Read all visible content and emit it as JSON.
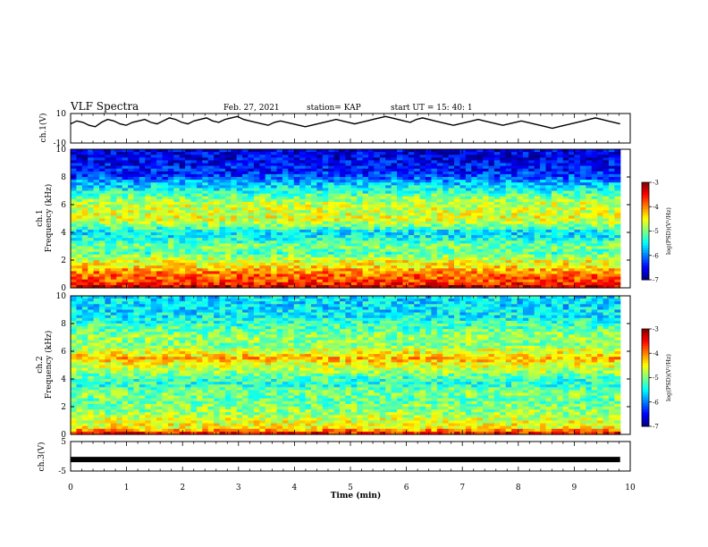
{
  "header": {
    "title": "VLF Spectra",
    "date": "Feb. 27, 2021",
    "station": "station= KAP",
    "start": "start  UT  =   15: 40: 1"
  },
  "colors": {
    "axis": "#000000",
    "background": "#ffffff",
    "colormap": [
      "#00007f",
      "#0000ff",
      "#007fff",
      "#00ffff",
      "#7fff7f",
      "#ffff00",
      "#ff7f00",
      "#ff0000",
      "#7f0000"
    ]
  },
  "chart_data": [
    {
      "type": "line",
      "panel": "ch1-waveform",
      "ylabel": "ch.1(V)",
      "ylim": [
        -10,
        10
      ],
      "yticks": [
        "10",
        "-10"
      ],
      "xlim": [
        0,
        10
      ],
      "x_range_data": [
        0,
        9.82
      ],
      "series": [
        {
          "values": [
            3,
            5,
            4,
            2,
            1,
            4,
            6,
            5,
            3,
            2,
            4,
            5,
            6,
            4,
            3,
            5,
            7,
            6,
            4,
            3,
            5,
            6,
            7,
            5,
            4,
            6,
            7,
            8,
            6,
            5,
            4,
            3,
            2,
            4,
            5,
            4,
            3,
            2,
            1,
            2,
            3,
            4,
            5,
            6,
            5,
            4,
            3,
            4,
            5,
            6,
            7,
            8,
            7,
            6,
            5,
            4,
            6,
            7,
            6,
            5,
            4,
            3,
            2,
            3,
            4,
            5,
            6,
            5,
            4,
            3,
            2,
            3,
            4,
            5,
            4,
            3,
            2,
            1,
            0,
            1,
            2,
            3,
            4,
            5,
            6,
            7,
            6,
            5,
            4,
            3
          ]
        }
      ]
    },
    {
      "type": "heatmap",
      "panel": "ch1-spectrogram",
      "ylabel": "ch.1\nFrequency (kHz)",
      "ylim": [
        0,
        10
      ],
      "yticks": [
        "0",
        "2",
        "4",
        "6",
        "8",
        "10"
      ],
      "xlim": [
        0,
        10
      ],
      "colorbar": {
        "range": [
          -7,
          -3
        ],
        "ticks": [
          "-3",
          "-4",
          "-5",
          "-6",
          "-7"
        ],
        "label": "log(PSD)(V²/Hz)"
      },
      "profile_khz_logpsd": [
        [
          0,
          -3.3
        ],
        [
          0.5,
          -3.8
        ],
        [
          1.0,
          -3.9
        ],
        [
          1.5,
          -4.4
        ],
        [
          2.0,
          -4.6
        ],
        [
          2.5,
          -5.2
        ],
        [
          3.0,
          -5.0
        ],
        [
          3.5,
          -5.4
        ],
        [
          4.0,
          -5.6
        ],
        [
          4.5,
          -5.0
        ],
        [
          5.0,
          -4.6
        ],
        [
          5.5,
          -4.7
        ],
        [
          6.0,
          -4.7
        ],
        [
          6.5,
          -5.0
        ],
        [
          7.0,
          -5.4
        ],
        [
          7.5,
          -5.7
        ],
        [
          8.0,
          -6.2
        ],
        [
          8.5,
          -6.4
        ],
        [
          9.0,
          -6.5
        ],
        [
          9.5,
          -6.6
        ],
        [
          10.0,
          -6.6
        ]
      ]
    },
    {
      "type": "heatmap",
      "panel": "ch2-spectrogram",
      "ylabel": "ch.2\nFrequency (kHz)",
      "ylim": [
        0,
        10
      ],
      "yticks": [
        "0",
        "2",
        "4",
        "6",
        "8",
        "10"
      ],
      "xlim": [
        0,
        10
      ],
      "colorbar": {
        "range": [
          -7,
          -3
        ],
        "ticks": [
          "-3",
          "-4",
          "-5",
          "-6",
          "-7"
        ],
        "label": "log(PSD)(V²/Hz)"
      },
      "profile_khz_logpsd": [
        [
          0,
          -3.4
        ],
        [
          0.5,
          -4.5
        ],
        [
          1.0,
          -4.6
        ],
        [
          1.5,
          -4.9
        ],
        [
          2.0,
          -5.0
        ],
        [
          2.5,
          -5.1
        ],
        [
          3.0,
          -5.0
        ],
        [
          3.5,
          -5.3
        ],
        [
          4.0,
          -5.3
        ],
        [
          4.5,
          -4.9
        ],
        [
          5.0,
          -4.6
        ],
        [
          5.5,
          -4.2
        ],
        [
          6.0,
          -4.6
        ],
        [
          6.5,
          -5.0
        ],
        [
          7.0,
          -4.9
        ],
        [
          7.5,
          -5.1
        ],
        [
          8.0,
          -5.3
        ],
        [
          8.5,
          -5.5
        ],
        [
          9.0,
          -5.6
        ],
        [
          9.5,
          -5.6
        ],
        [
          10.0,
          -5.6
        ]
      ]
    },
    {
      "type": "line",
      "panel": "ch3-waveform",
      "ylabel": "ch.3(V)",
      "ylim": [
        -5,
        5
      ],
      "yticks": [
        "5",
        "-5"
      ],
      "xlim": [
        0,
        10
      ],
      "x_range_data": [
        0,
        9.82
      ],
      "series": [
        {
          "values": [
            -1.1,
            -1.1
          ]
        }
      ],
      "xlabel": "Time  (min)",
      "xticks": [
        "0",
        "1",
        "2",
        "3",
        "4",
        "5",
        "6",
        "7",
        "8",
        "9",
        "10"
      ]
    }
  ]
}
